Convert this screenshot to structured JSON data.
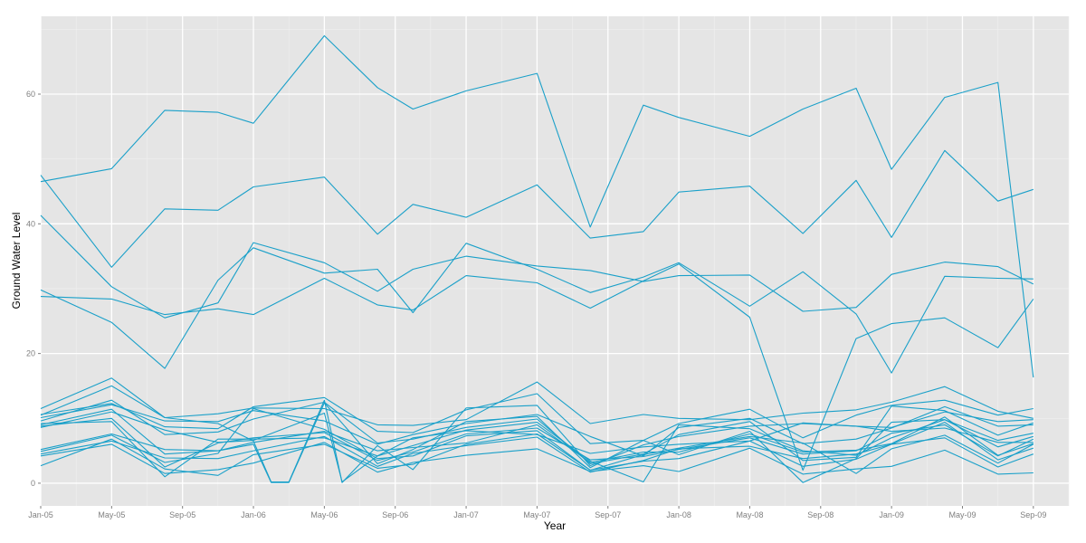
{
  "chart_data": {
    "type": "line",
    "title": "",
    "xlabel": "Year",
    "ylabel": "Ground Water Level",
    "x_tick_labels": [
      "Jan-05",
      "May-05",
      "Sep-05",
      "Jan-06",
      "May-06",
      "Sep-06",
      "Jan-07",
      "May-07",
      "Sep-07",
      "Jan-08",
      "May-08",
      "Sep-08",
      "Jan-09",
      "May-09",
      "Sep-09"
    ],
    "y_ticks": [
      0,
      20,
      40,
      60
    ],
    "ylim": [
      -3.5,
      72
    ],
    "x_range_months": [
      0,
      58
    ],
    "grid": true,
    "legend": "none",
    "line_color": "#1aa0c9",
    "panel_color": "#e5e5e5",
    "grid_major_color": "#ffffff",
    "grid_minor_color": "#f0f0f0",
    "x_months": [
      0,
      4,
      7,
      10,
      12,
      13,
      14,
      16,
      17,
      19,
      21,
      24,
      28,
      31,
      34,
      36,
      40,
      43,
      46,
      48,
      51,
      54,
      56,
      58
    ],
    "series": [
      {
        "values": [
          46.5,
          48.5,
          57.5,
          57.2,
          55.5,
          null,
          null,
          69.0,
          null,
          61.0,
          57.7,
          60.5,
          63.2,
          39.5,
          58.3,
          56.4,
          53.5,
          57.7,
          60.9,
          48.4,
          59.5,
          61.8,
          16.3,
          null
        ]
      },
      {
        "values": [
          47.5,
          33.3,
          42.3,
          42.1,
          45.7,
          null,
          null,
          47.2,
          null,
          38.4,
          43.0,
          41.0,
          46.0,
          37.8,
          38.8,
          44.9,
          45.8,
          38.5,
          46.7,
          37.9,
          51.3,
          43.5,
          45.3,
          null
        ]
      },
      {
        "values": [
          41.3,
          30.3,
          25.5,
          27.8,
          37.1,
          null,
          null,
          34.0,
          null,
          29.6,
          33.0,
          35.0,
          33.5,
          32.8,
          31.1,
          32.0,
          32.1,
          26.5,
          27.1,
          32.2,
          34.1,
          33.4,
          30.7,
          null
        ]
      },
      {
        "values": [
          29.8,
          24.8,
          17.7,
          31.3,
          36.3,
          null,
          null,
          32.4,
          null,
          33.0,
          26.3,
          37.0,
          33.0,
          29.4,
          31.8,
          34.0,
          27.3,
          32.6,
          26.1,
          17.0,
          31.9,
          31.6,
          31.5,
          null
        ]
      },
      {
        "values": [
          28.8,
          28.4,
          26.0,
          26.9,
          26.0,
          null,
          null,
          31.6,
          null,
          27.5,
          26.7,
          32.0,
          30.9,
          27.0,
          31.2,
          33.8,
          25.6,
          2.0,
          22.3,
          24.6,
          25.5,
          20.9,
          28.4,
          null
        ]
      },
      {
        "values": [
          11.5,
          16.2,
          10.1,
          10.7,
          11.6,
          null,
          null,
          11.5,
          null,
          9.0,
          8.9,
          9.8,
          15.6,
          9.2,
          10.6,
          10.0,
          9.8,
          10.8,
          11.3,
          12.5,
          14.9,
          11.1,
          10.0,
          null
        ]
      },
      {
        "values": [
          10.6,
          12.3,
          8.7,
          8.4,
          11.8,
          null,
          null,
          13.2,
          null,
          8.0,
          7.8,
          11.3,
          13.8,
          6.1,
          6.6,
          9.2,
          11.4,
          7.0,
          10.5,
          12.0,
          12.8,
          10.5,
          11.5,
          null
        ]
      },
      {
        "values": [
          10.5,
          15.0,
          10.1,
          9.2,
          6.5,
          0.2,
          0.2,
          12.8,
          0.1,
          5.8,
          2.1,
          11.6,
          12.0,
          2.7,
          5.9,
          7.2,
          8.8,
          9.2,
          8.8,
          8.6,
          11.0,
          9.5,
          9.8,
          null
        ]
      },
      {
        "values": [
          10.1,
          12.1,
          9.6,
          9.5,
          11.2,
          null,
          null,
          9.6,
          null,
          6.0,
          7.5,
          9.2,
          10.6,
          7.2,
          4.2,
          8.6,
          10.0,
          6.1,
          6.8,
          8.5,
          11.8,
          8.8,
          9.0,
          null
        ]
      },
      {
        "values": [
          9.6,
          12.8,
          7.5,
          7.9,
          9.9,
          null,
          null,
          12.5,
          null,
          6.2,
          6.8,
          8.6,
          9.9,
          3.0,
          4.5,
          7.5,
          9.5,
          3.5,
          4.0,
          11.9,
          11.2,
          7.4,
          9.3,
          null
        ]
      },
      {
        "values": [
          9.0,
          11.4,
          4.5,
          5.0,
          6.0,
          0.1,
          0.1,
          12.4,
          null,
          3.0,
          5.2,
          9.5,
          10.3,
          2.4,
          6.6,
          4.4,
          8.0,
          0.1,
          3.8,
          9.4,
          9.8,
          6.6,
          7.7,
          null
        ]
      },
      {
        "values": [
          8.6,
          11.0,
          8.2,
          6.3,
          6.6,
          null,
          null,
          10.8,
          0.2,
          4.2,
          7.0,
          8.1,
          7.5,
          4.6,
          5.6,
          6.0,
          6.5,
          9.3,
          8.8,
          8.0,
          8.5,
          6.3,
          6.3,
          null
        ]
      },
      {
        "values": [
          5.2,
          7.6,
          5.2,
          5.0,
          6.3,
          null,
          null,
          8.0,
          null,
          5.0,
          5.5,
          6.2,
          9.0,
          3.2,
          4.8,
          4.8,
          7.6,
          4.8,
          5.1,
          6.1,
          10.2,
          4.3,
          6.1,
          null
        ]
      },
      {
        "values": [
          4.9,
          7.4,
          3.2,
          4.6,
          11.5,
          null,
          null,
          8.3,
          null,
          3.8,
          4.2,
          7.3,
          8.1,
          2.0,
          4.4,
          5.4,
          7.2,
          6.2,
          1.5,
          5.3,
          7.4,
          3.1,
          6.0,
          null
        ]
      },
      {
        "values": [
          4.5,
          6.5,
          3.9,
          3.8,
          5.0,
          null,
          null,
          7.2,
          null,
          2.6,
          4.6,
          5.8,
          7.1,
          1.7,
          3.5,
          5.3,
          5.7,
          3.8,
          4.5,
          6.0,
          9.4,
          3.6,
          5.4,
          null
        ]
      },
      {
        "values": [
          4.2,
          6.0,
          1.5,
          2.1,
          3.1,
          null,
          null,
          6.3,
          null,
          1.7,
          3.2,
          4.3,
          5.3,
          1.8,
          2.7,
          1.8,
          5.4,
          1.4,
          2.2,
          2.6,
          5.1,
          1.4,
          1.6,
          null
        ]
      },
      {
        "values": [
          2.7,
          6.8,
          2.2,
          1.2,
          4.4,
          null,
          null,
          6.0,
          null,
          2.3,
          2.9,
          6.0,
          7.6,
          2.0,
          3.4,
          3.8,
          6.5,
          2.6,
          3.7,
          6.0,
          7.0,
          2.5,
          4.5,
          null
        ]
      },
      {
        "values": [
          8.8,
          10.0,
          2.5,
          6.2,
          7.0,
          null,
          null,
          7.8,
          null,
          3.5,
          4.8,
          7.6,
          8.5,
          3.6,
          4.1,
          5.2,
          7.0,
          4.5,
          5.0,
          7.7,
          9.0,
          4.2,
          6.8,
          null
        ]
      },
      {
        "values": [
          9.2,
          9.5,
          1.0,
          6.8,
          6.8,
          null,
          null,
          7.0,
          null,
          4.2,
          5.8,
          8.2,
          9.4,
          3.4,
          0.2,
          9.0,
          8.4,
          5.0,
          4.3,
          7.0,
          9.8,
          5.6,
          7.2,
          null
        ]
      }
    ]
  }
}
